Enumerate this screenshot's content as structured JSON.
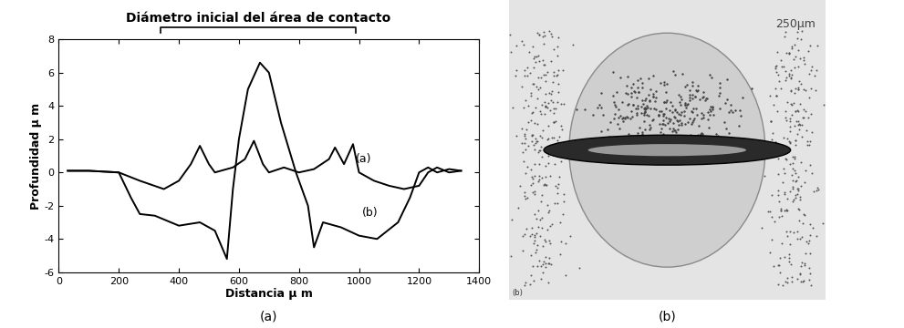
{
  "chart_data": {
    "type": "line",
    "title": "Diámetro inicial del área de contacto",
    "title_span": [
      340,
      990
    ],
    "x_label": "Distancia μ m",
    "y_label": "Profundidad μ m",
    "xlim": [
      0,
      1400
    ],
    "xticks": [
      0,
      200,
      400,
      600,
      800,
      1000,
      1200,
      1400
    ],
    "ylim": [
      -6,
      8
    ],
    "yticks": [
      -6,
      -4,
      -2,
      0,
      2,
      4,
      6,
      8
    ],
    "grid": false,
    "caption": "(a)",
    "series": [
      {
        "name": "(a)",
        "color": "#000000",
        "line_style": "solid",
        "label_xy": [
          990,
          0.8
        ],
        "x": [
          30,
          100,
          200,
          270,
          350,
          400,
          440,
          470,
          500,
          520,
          580,
          620,
          650,
          680,
          700,
          750,
          800,
          850,
          900,
          920,
          950,
          980,
          1000,
          1050,
          1100,
          1150,
          1200,
          1230,
          1260,
          1300,
          1340
        ],
        "values": [
          0.1,
          0.1,
          0,
          -0.5,
          -1,
          -0.5,
          0.5,
          1.6,
          0.5,
          0,
          0.3,
          0.8,
          1.9,
          0.5,
          0,
          0.3,
          0,
          0.2,
          0.8,
          1.5,
          0.5,
          1.7,
          0,
          -0.5,
          -0.8,
          -1,
          -0.8,
          0,
          0.3,
          0,
          0.1
        ]
      },
      {
        "name": "(b)",
        "color": "#000000",
        "line_style": "solid",
        "label_xy": [
          1010,
          -2.4
        ],
        "x": [
          30,
          100,
          200,
          240,
          270,
          320,
          400,
          470,
          520,
          560,
          580,
          600,
          630,
          670,
          700,
          740,
          790,
          830,
          850,
          880,
          940,
          1000,
          1060,
          1130,
          1170,
          1200,
          1230,
          1260,
          1300,
          1340
        ],
        "values": [
          0.1,
          0.1,
          0,
          -1.5,
          -2.5,
          -2.6,
          -3.2,
          -3,
          -3.5,
          -5.2,
          -1,
          2,
          5,
          6.6,
          6,
          3,
          0,
          -2,
          -4.5,
          -3,
          -3.3,
          -3.8,
          -4,
          -3,
          -1.5,
          0,
          0.3,
          0,
          0.2,
          0.1
        ]
      }
    ]
  },
  "photo": {
    "scale_label": "250µm",
    "corner_label": "(b)",
    "caption": "(b)"
  }
}
